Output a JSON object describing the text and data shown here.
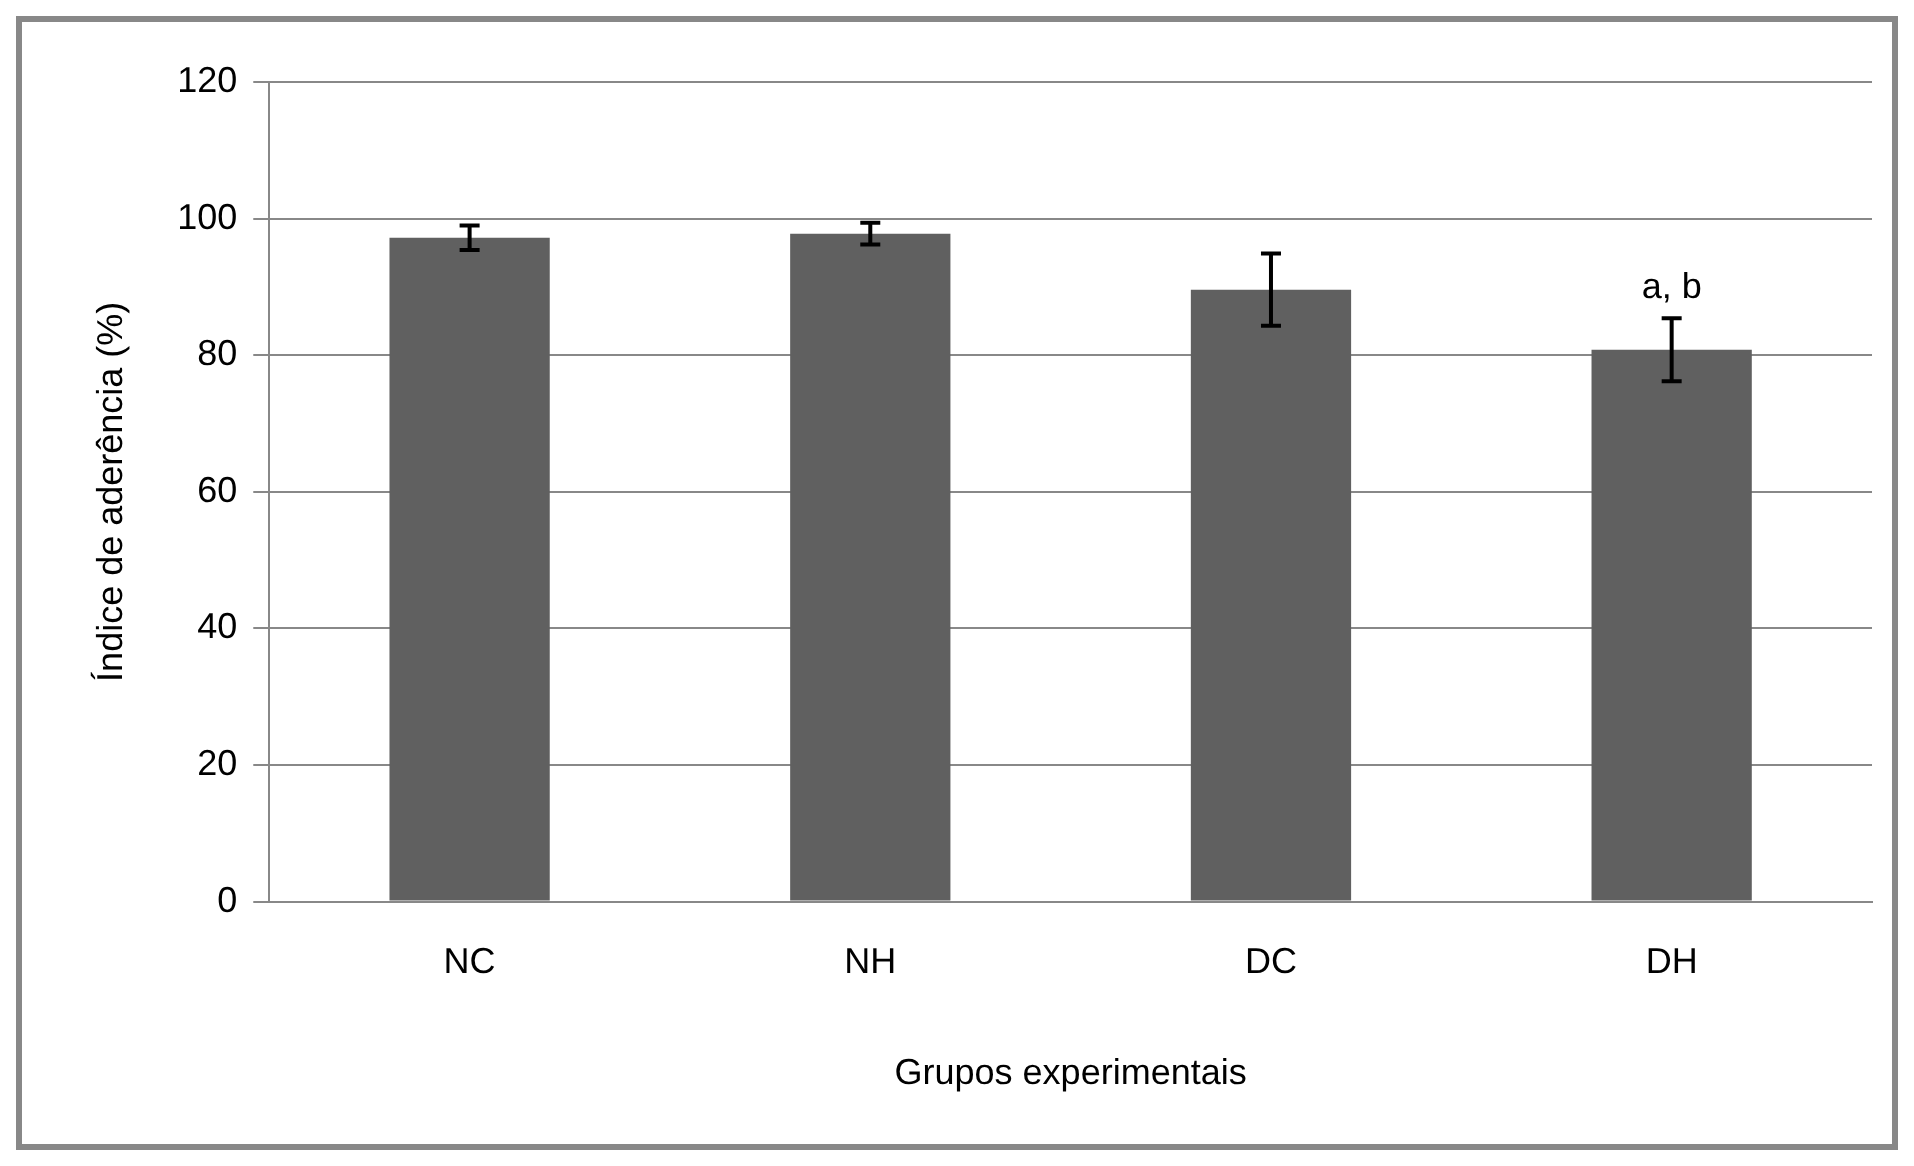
{
  "chart_data": {
    "type": "bar",
    "xlabel": "Grupos experimentais",
    "ylabel": "Índice de aderência (%)",
    "categories": [
      "NC",
      "NH",
      "DC",
      "DH"
    ],
    "values": [
      97.2,
      97.8,
      89.6,
      80.8
    ],
    "errors": [
      1.8,
      1.6,
      5.3,
      4.6
    ],
    "color": "#606060",
    "ylim": [
      0,
      120
    ],
    "yticks": [
      0,
      20,
      40,
      60,
      80,
      100,
      120
    ],
    "grid": "y",
    "annotations": [
      {
        "text": "a, b",
        "x": "DH",
        "y": 85.4
      }
    ]
  }
}
